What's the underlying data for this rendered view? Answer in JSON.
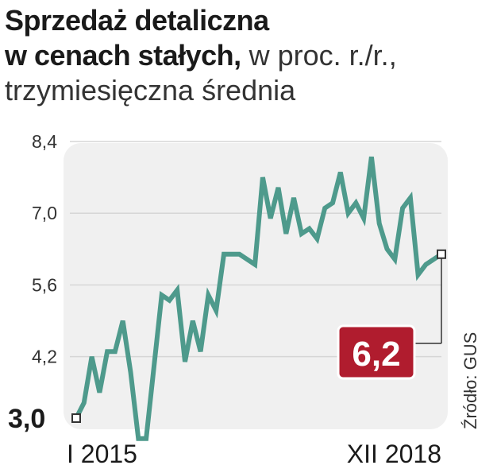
{
  "title": {
    "line1": "Sprzedaż detaliczna",
    "line2_bold": "w cenach stałych,",
    "line2_light": " w proc. r./r.,",
    "line3": "trzymiesięczna średnia"
  },
  "source": "Źródło: GUS",
  "colors": {
    "line": "#4e9a8c",
    "plot_bg": "#f0f0f0",
    "badge": "#b01c2e",
    "grid": "#d6d6d6"
  },
  "chart_data": {
    "type": "line",
    "y_ticks": [
      "8,4",
      "7,0",
      "5,6",
      "4,2"
    ],
    "first_value_label": "3,0",
    "last_value_label": "6,2",
    "x_labels": [
      "I 2015",
      "XII 2018"
    ],
    "ylim": [
      3.0,
      8.4
    ],
    "grid": true,
    "values": [
      3.0,
      3.3,
      4.2,
      3.5,
      4.3,
      4.3,
      4.9,
      3.9,
      2.6,
      2.6,
      4.0,
      5.4,
      5.3,
      5.5,
      4.1,
      4.9,
      4.3,
      5.4,
      5.1,
      6.2,
      6.2,
      6.2,
      6.1,
      6.0,
      7.7,
      6.9,
      7.5,
      6.6,
      7.3,
      6.6,
      6.7,
      6.5,
      7.1,
      7.2,
      7.8,
      7.0,
      7.2,
      6.9,
      8.1,
      6.8,
      6.3,
      6.1,
      7.1,
      7.3,
      5.8,
      6.0,
      6.1,
      6.2
    ]
  }
}
